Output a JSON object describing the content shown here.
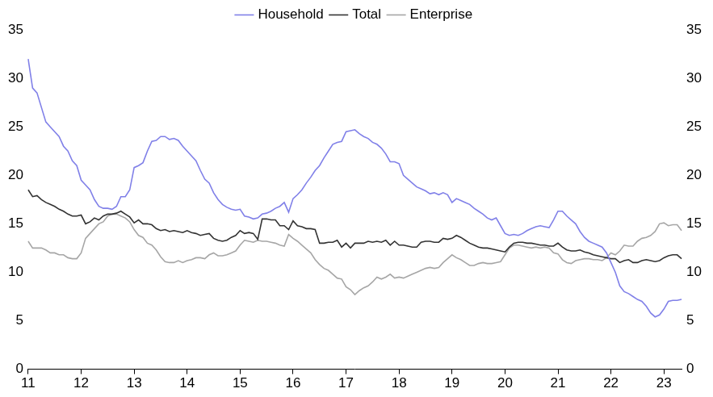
{
  "chart_data": {
    "type": "line",
    "categories": [
      "11",
      null,
      null,
      null,
      null,
      null,
      null,
      null,
      null,
      null,
      null,
      null,
      "12",
      null,
      null,
      null,
      null,
      null,
      null,
      null,
      null,
      null,
      null,
      null,
      "13",
      null,
      null,
      null,
      null,
      null,
      null,
      null,
      null,
      null,
      null,
      null,
      "14",
      null,
      null,
      null,
      null,
      null,
      null,
      null,
      null,
      null,
      null,
      null,
      "15",
      null,
      null,
      null,
      null,
      null,
      null,
      null,
      null,
      null,
      null,
      null,
      "16",
      null,
      null,
      null,
      null,
      null,
      null,
      null,
      null,
      null,
      null,
      null,
      "17",
      null,
      null,
      null,
      null,
      null,
      null,
      null,
      null,
      null,
      null,
      null,
      "18",
      null,
      null,
      null,
      null,
      null,
      null,
      null,
      null,
      null,
      null,
      null,
      "19",
      null,
      null,
      null,
      null,
      null,
      null,
      null,
      null,
      null,
      null,
      null,
      "20",
      null,
      null,
      null,
      null,
      null,
      null,
      null,
      null,
      null,
      null,
      null,
      "21",
      null,
      null,
      null,
      null,
      null,
      null,
      null,
      null,
      null,
      null,
      null,
      "22",
      null,
      null,
      null,
      null,
      null,
      null,
      null,
      null,
      null,
      null,
      null,
      "23",
      null,
      null,
      null,
      null
    ],
    "series": [
      {
        "name": "Household",
        "color": "#8080e8",
        "values": [
          32,
          29,
          28.5,
          27,
          25.5,
          25,
          24.5,
          24,
          23,
          22.5,
          21.5,
          21,
          19.5,
          19,
          18.5,
          17.5,
          16.8,
          16.6,
          16.6,
          16.5,
          16.8,
          17.8,
          17.8,
          18.5,
          20.8,
          21,
          21.3,
          22.5,
          23.5,
          23.6,
          24,
          24,
          23.7,
          23.8,
          23.6,
          23,
          22.5,
          22,
          21.5,
          20.5,
          19.6,
          19.2,
          18.2,
          17.5,
          17,
          16.7,
          16.5,
          16.4,
          16.5,
          15.8,
          15.7,
          15.5,
          15.6,
          16,
          16.1,
          16.3,
          16.6,
          16.8,
          17.2,
          16.2,
          17.6,
          18,
          18.5,
          19.2,
          19.8,
          20.5,
          21,
          21.8,
          22.5,
          23.2,
          23.4,
          23.5,
          24.5,
          24.6,
          24.7,
          24.3,
          24,
          23.8,
          23.4,
          23.2,
          22.8,
          22.2,
          21.4,
          21.4,
          21.2,
          20,
          19.6,
          19.2,
          18.8,
          18.6,
          18.4,
          18.1,
          18.2,
          18,
          18.2,
          18,
          17.2,
          17.6,
          17.4,
          17.2,
          17,
          16.6,
          16.3,
          16,
          15.6,
          15.4,
          15.6,
          14.8,
          14,
          13.8,
          13.9,
          13.8,
          14,
          14.3,
          14.5,
          14.7,
          14.8,
          14.7,
          14.6,
          15.4,
          16.3,
          16.3,
          15.8,
          15.4,
          15,
          14.2,
          13.6,
          13.2,
          13,
          12.8,
          12.6,
          12,
          11,
          10,
          8.6,
          8,
          7.8,
          7.5,
          7.2,
          7,
          6.5,
          5.8,
          5.4,
          5.6,
          6.2,
          7,
          7.1,
          7.1,
          7.2
        ]
      },
      {
        "name": "Total",
        "color": "#333333",
        "values": [
          18.5,
          17.8,
          17.9,
          17.5,
          17.2,
          17,
          16.8,
          16.5,
          16.3,
          16,
          15.8,
          15.8,
          15.9,
          15,
          15.2,
          15.6,
          15.4,
          15.8,
          16,
          16,
          16.1,
          16.3,
          16,
          15.7,
          15.1,
          15.4,
          15,
          15,
          14.9,
          14.5,
          14.3,
          14.4,
          14.2,
          14.3,
          14.2,
          14.1,
          14.3,
          14.1,
          14,
          13.8,
          13.9,
          14,
          13.5,
          13.3,
          13.2,
          13.3,
          13.6,
          13.8,
          14.3,
          14,
          14.1,
          14,
          13.4,
          15.5,
          15.5,
          15.4,
          15.4,
          14.8,
          14.8,
          14.4,
          15.3,
          14.8,
          14.7,
          14.5,
          14.5,
          14.4,
          13,
          13,
          13.1,
          13.1,
          13.3,
          12.6,
          13,
          12.5,
          13,
          13,
          13,
          13.2,
          13.1,
          13.2,
          13.1,
          13.3,
          12.8,
          13.2,
          12.8,
          12.8,
          12.7,
          12.6,
          12.6,
          13.1,
          13.2,
          13.2,
          13.1,
          13.1,
          13.5,
          13.4,
          13.5,
          13.8,
          13.6,
          13.3,
          13,
          12.8,
          12.6,
          12.5,
          12.5,
          12.4,
          12.3,
          12.2,
          12.1,
          12.6,
          13,
          13.1,
          13.1,
          13,
          13,
          12.9,
          12.8,
          12.8,
          12.7,
          12.7,
          13,
          12.6,
          12.3,
          12.2,
          12.2,
          12.3,
          12.1,
          12,
          11.8,
          11.7,
          11.6,
          11.5,
          11.4,
          11.4,
          11,
          11.2,
          11.3,
          11,
          11,
          11.2,
          11.3,
          11.2,
          11.1,
          11.2,
          11.5,
          11.7,
          11.8,
          11.8,
          11.4
        ]
      },
      {
        "name": "Enterprise",
        "color": "#a6a6a6",
        "values": [
          13.2,
          12.5,
          12.5,
          12.5,
          12.3,
          12,
          12,
          11.8,
          11.8,
          11.5,
          11.4,
          11.4,
          12,
          13.5,
          14,
          14.5,
          15,
          15.2,
          15.8,
          16,
          16,
          15.8,
          15.6,
          15.2,
          14.4,
          13.8,
          13.6,
          13,
          12.8,
          12.3,
          11.6,
          11.1,
          11,
          11,
          11.2,
          11,
          11.2,
          11.3,
          11.5,
          11.5,
          11.4,
          11.8,
          12,
          11.7,
          11.7,
          11.8,
          12,
          12.2,
          12.8,
          13.3,
          13.2,
          13.1,
          13.3,
          13.2,
          13.2,
          13.1,
          13,
          12.8,
          12.7,
          13.9,
          13.5,
          13.2,
          12.8,
          12.4,
          12,
          11.3,
          10.8,
          10.4,
          10.2,
          9.8,
          9.4,
          9.3,
          8.5,
          8.2,
          7.7,
          8.1,
          8.4,
          8.6,
          9,
          9.5,
          9.3,
          9.5,
          9.8,
          9.4,
          9.5,
          9.4,
          9.6,
          9.8,
          10,
          10.2,
          10.4,
          10.5,
          10.4,
          10.5,
          11,
          11.4,
          11.8,
          11.5,
          11.3,
          11,
          10.7,
          10.7,
          10.9,
          11,
          10.9,
          10.9,
          11,
          11.1,
          11.8,
          12.5,
          12.8,
          12.8,
          12.7,
          12.6,
          12.5,
          12.6,
          12.5,
          12.6,
          12.5,
          12,
          11.9,
          11.3,
          11,
          10.9,
          11.2,
          11.3,
          11.4,
          11.4,
          11.3,
          11.3,
          11.2,
          11.5,
          12,
          11.8,
          12.2,
          12.8,
          12.7,
          12.7,
          13.2,
          13.5,
          13.6,
          13.8,
          14.2,
          15,
          15.1,
          14.8,
          14.9,
          14.9,
          14.3
        ]
      }
    ],
    "ylim": [
      0,
      35
    ],
    "yticks": [
      0,
      5,
      10,
      15,
      20,
      25,
      30,
      35
    ],
    "y2lim": [
      0,
      35
    ],
    "y2ticks": [
      0,
      5,
      10,
      15,
      20,
      25,
      30,
      35
    ],
    "grid": false,
    "legend": "top"
  }
}
